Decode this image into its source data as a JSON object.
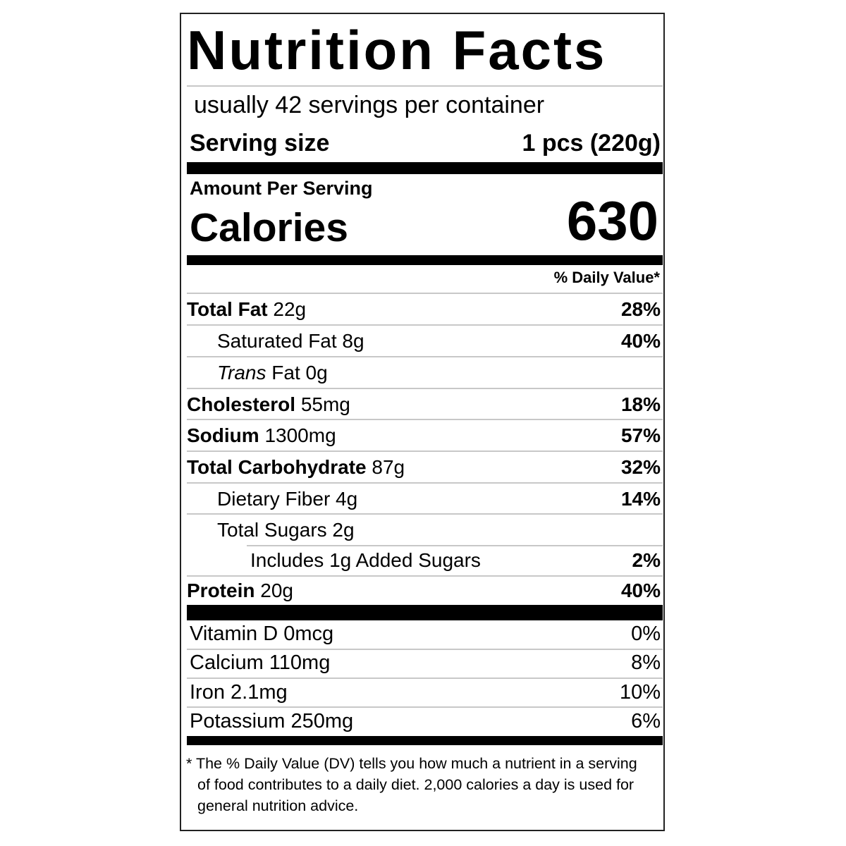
{
  "title": "Nutrition Facts",
  "servings": "usually 42 servings per container",
  "serving_size": {
    "label": "Serving size",
    "value": "1 pcs (220g)"
  },
  "amount_per_serving": "Amount Per Serving",
  "calories": {
    "label": "Calories",
    "value": "630"
  },
  "daily_value_header": "% Daily Value*",
  "nutrients": [
    {
      "label": "Total Fat",
      "amount": "22g",
      "dv": "28%"
    },
    {
      "label": "Saturated Fat 8g",
      "dv": "40%"
    },
    {
      "label_italic": "Trans",
      "label": "Fat 0g"
    },
    {
      "label": "Cholesterol",
      "amount": "55mg",
      "dv": "18%"
    },
    {
      "label": "Sodium",
      "amount": "1300mg",
      "dv": "57%"
    },
    {
      "label": "Total Carbohydrate",
      "amount": "87g",
      "dv": "32%"
    },
    {
      "label": "Dietary Fiber 4g",
      "dv": "14%"
    },
    {
      "label": "Total Sugars 2g"
    },
    {
      "label": "Includes 1g Added Sugars",
      "dv": "2%"
    },
    {
      "label": "Protein",
      "amount": "20g",
      "dv": "40%"
    }
  ],
  "vitamins": [
    {
      "label": "Vitamin D 0mcg",
      "dv": "0%"
    },
    {
      "label": "Calcium 110mg",
      "dv": "8%"
    },
    {
      "label": "Iron 2.1mg",
      "dv": "10%"
    },
    {
      "label": "Potassium 250mg",
      "dv": "6%"
    }
  ],
  "footnote": "* The % Daily Value (DV) tells you how much a nutrient in a serving of food contributes to a daily diet. 2,000 calories a day is used for general nutrition advice."
}
